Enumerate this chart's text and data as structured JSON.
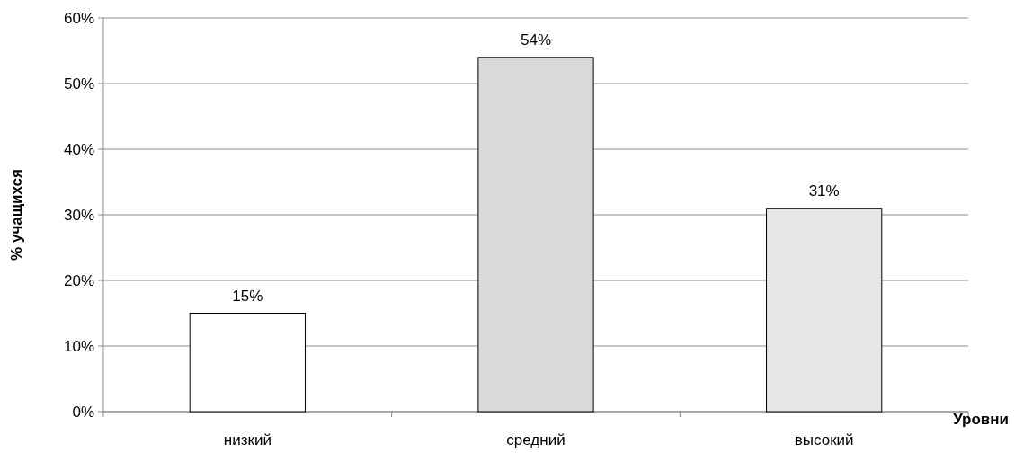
{
  "chart_data": {
    "type": "bar",
    "xlabel": "Уровни",
    "ylabel": "% учащихся",
    "categories": [
      "низкий",
      "средний",
      "высокий"
    ],
    "values": [
      15,
      54,
      31
    ],
    "colors": [
      "#ffffff",
      "#d9d9d9",
      "#e6e6e4"
    ],
    "ylim": [
      0,
      60
    ],
    "yticks": [
      {
        "value": 0,
        "label": "0%"
      },
      {
        "value": 10,
        "label": "10%"
      },
      {
        "value": 20,
        "label": "20%"
      },
      {
        "value": 30,
        "label": "30%"
      },
      {
        "value": 40,
        "label": "40%"
      },
      {
        "value": 50,
        "label": "50%"
      },
      {
        "value": 60,
        "label": "60%"
      }
    ],
    "grid": "y",
    "value_labels": [
      "15%",
      "54%",
      "31%"
    ]
  }
}
